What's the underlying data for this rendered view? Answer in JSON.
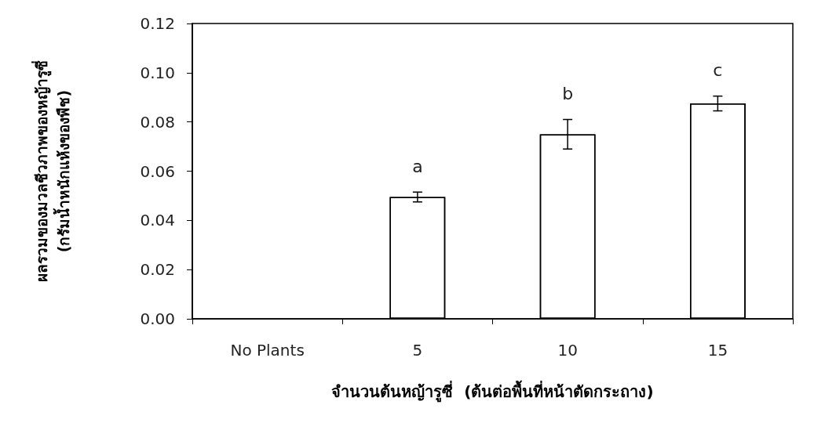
{
  "chart_data": {
    "type": "bar",
    "xlabel": "จำนวนต้นหญ้ารูซี่  (ต้นต่อพื้นที่หน้าตัดกระถาง)",
    "ylabel": "ผลรวมของมวลชีวภาพของหญ้ารูซี่\n(กรัมน้ำหนักแห้งของพืช)",
    "categories": [
      "No Plants",
      "5",
      "10",
      "15"
    ],
    "series": [
      {
        "color": "#ffffff",
        "values": [
          0,
          0.0495,
          0.075,
          0.0875
        ],
        "errors": [
          null,
          0.002,
          0.006,
          0.003
        ]
      }
    ],
    "ylim": [
      0,
      0.12
    ],
    "yticks": [
      {
        "value": 0,
        "label": "0.00"
      },
      {
        "value": 0.02,
        "label": "0.02"
      },
      {
        "value": 0.04,
        "label": "0.04"
      },
      {
        "value": 0.06,
        "label": "0.06"
      },
      {
        "value": 0.08,
        "label": "0.08"
      },
      {
        "value": 0.1,
        "label": "0.10"
      },
      {
        "value": 0.12,
        "label": "0.12"
      }
    ],
    "annotations": [
      "a",
      "b",
      "c"
    ],
    "grid": false
  }
}
